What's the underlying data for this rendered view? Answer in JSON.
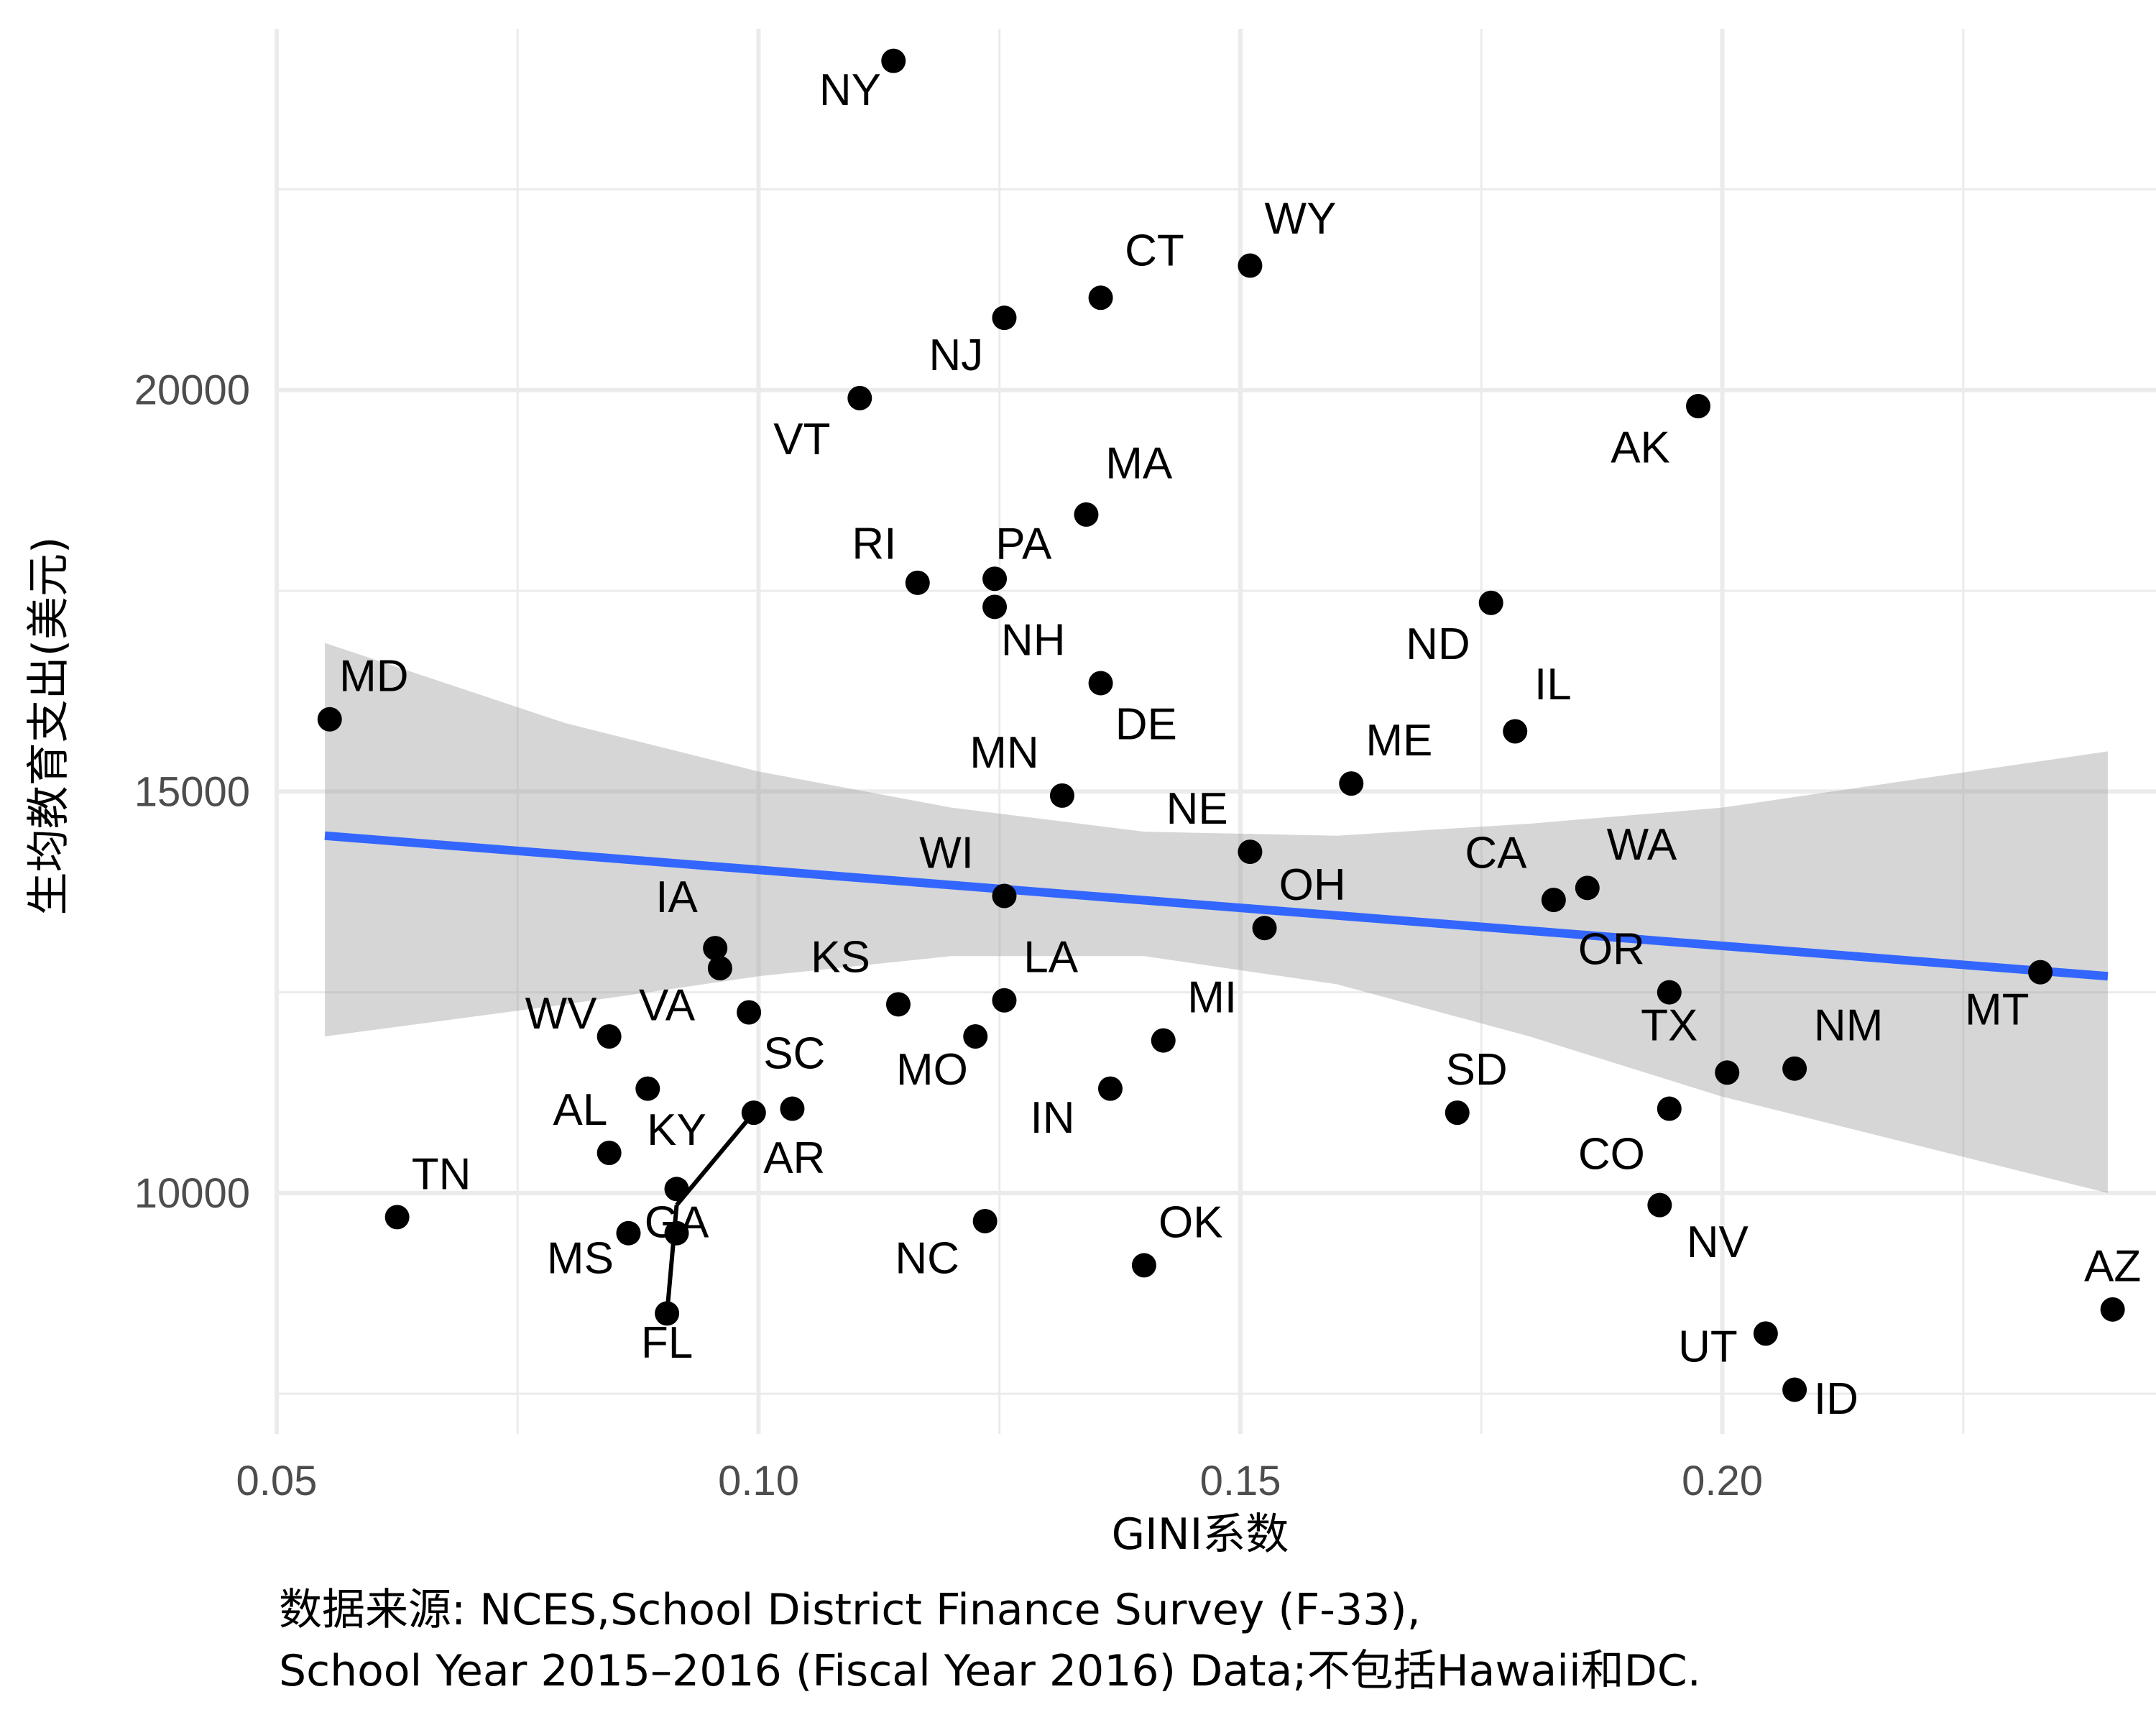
{
  "chart_data": {
    "type": "scatter",
    "xlabel": "GINI系数",
    "ylabel": "生均教育支出(美元)",
    "caption": [
      "数据来源: NCES,School District Finance Survey (F-33),",
      "School Year 2015–2016 (Fiscal Year 2016) Data;不包括Hawaii和DC."
    ],
    "xlim": [
      0.05,
      0.245
    ],
    "ylim": [
      7000,
      24500
    ],
    "x_ticks": [
      0.05,
      0.1,
      0.15,
      0.2
    ],
    "x_tick_labels": [
      "0.05",
      "0.10",
      "0.15",
      "0.20"
    ],
    "y_ticks": [
      10000,
      15000,
      20000
    ],
    "y_tick_labels": [
      "10000",
      "15000",
      "20000"
    ],
    "grid": true,
    "colors": {
      "points": "#000000",
      "trend_line": "#3366ff",
      "confidence_band": "#999999",
      "grid": "#ebebeb"
    },
    "trend": {
      "x": [
        0.055,
        0.24
      ],
      "y": [
        14450,
        12700
      ]
    },
    "band": {
      "x": [
        0.055,
        0.08,
        0.1,
        0.12,
        0.14,
        0.16,
        0.18,
        0.2,
        0.22,
        0.24
      ],
      "lower": [
        11950,
        12350,
        12700,
        12950,
        12950,
        12600,
        11950,
        11200,
        10600,
        10000
      ],
      "upper": [
        16850,
        15850,
        15250,
        14800,
        14500,
        14450,
        14600,
        14800,
        15150,
        15500
      ]
    },
    "points": [
      {
        "label": "NY",
        "x": 0.114,
        "y": 24100,
        "lx": 0.1095,
        "ly": 23550,
        "anchor": "middle"
      },
      {
        "label": "WY",
        "x": 0.151,
        "y": 21550,
        "lx": 0.1525,
        "ly": 21950,
        "anchor": "start"
      },
      {
        "label": "CT",
        "x": 0.1355,
        "y": 21150,
        "lx": 0.138,
        "ly": 21550,
        "anchor": "start"
      },
      {
        "label": "NJ",
        "x": 0.1255,
        "y": 20900,
        "lx": 0.1205,
        "ly": 20250,
        "anchor": "middle"
      },
      {
        "label": "VT",
        "x": 0.1105,
        "y": 19900,
        "lx": 0.1045,
        "ly": 19200,
        "anchor": "middle"
      },
      {
        "label": "AK",
        "x": 0.1975,
        "y": 19800,
        "lx": 0.1915,
        "ly": 19100,
        "anchor": "middle"
      },
      {
        "label": "MA",
        "x": 0.134,
        "y": 18450,
        "lx": 0.136,
        "ly": 18900,
        "anchor": "start"
      },
      {
        "label": "RI",
        "x": 0.1165,
        "y": 17600,
        "lx": 0.112,
        "ly": 17900,
        "anchor": "middle"
      },
      {
        "label": "PA",
        "x": 0.1245,
        "y": 17650,
        "lx": 0.1275,
        "ly": 17900,
        "anchor": "middle"
      },
      {
        "label": "NH",
        "x": 0.1245,
        "y": 17300,
        "lx": 0.1285,
        "ly": 16700,
        "anchor": "middle"
      },
      {
        "label": "ND",
        "x": 0.176,
        "y": 17350,
        "lx": 0.1705,
        "ly": 16650,
        "anchor": "middle"
      },
      {
        "label": "DE",
        "x": 0.1355,
        "y": 16350,
        "lx": 0.137,
        "ly": 15650,
        "anchor": "start"
      },
      {
        "label": "IL",
        "x": 0.1785,
        "y": 15750,
        "lx": 0.1805,
        "ly": 16150,
        "anchor": "start"
      },
      {
        "label": "MD",
        "x": 0.0555,
        "y": 15900,
        "lx": 0.0565,
        "ly": 16250,
        "anchor": "start"
      },
      {
        "label": "ME",
        "x": 0.1615,
        "y": 15100,
        "lx": 0.163,
        "ly": 15450,
        "anchor": "start"
      },
      {
        "label": "MN",
        "x": 0.1315,
        "y": 14950,
        "lx": 0.1255,
        "ly": 15300,
        "anchor": "middle"
      },
      {
        "label": "NE",
        "x": 0.151,
        "y": 14250,
        "lx": 0.1455,
        "ly": 14600,
        "anchor": "middle"
      },
      {
        "label": "WA",
        "x": 0.186,
        "y": 13800,
        "lx": 0.188,
        "ly": 14150,
        "anchor": "start"
      },
      {
        "label": "WI",
        "x": 0.1255,
        "y": 13700,
        "lx": 0.1195,
        "ly": 14050,
        "anchor": "middle"
      },
      {
        "label": "CA",
        "x": 0.1825,
        "y": 13650,
        "lx": 0.1765,
        "ly": 14050,
        "anchor": "middle"
      },
      {
        "label": "OH",
        "x": 0.1525,
        "y": 13300,
        "lx": 0.154,
        "ly": 13650,
        "anchor": "start"
      },
      {
        "label": "IA",
        "x": 0.0955,
        "y": 13050,
        "lx": 0.0915,
        "ly": 13500,
        "anchor": "middle"
      },
      {
        "label": "",
        "x": 0.096,
        "y": 12800,
        "lx": 0,
        "ly": 0,
        "anchor": "middle"
      },
      {
        "label": "MT",
        "x": 0.233,
        "y": 12750,
        "lx": 0.2285,
        "ly": 12100,
        "anchor": "middle"
      },
      {
        "label": "KS",
        "x": 0.1145,
        "y": 12350,
        "lx": 0.1085,
        "ly": 12750,
        "anchor": "middle"
      },
      {
        "label": "LA",
        "x": 0.1255,
        "y": 12400,
        "lx": 0.1275,
        "ly": 12750,
        "anchor": "start"
      },
      {
        "label": "OR",
        "x": 0.1945,
        "y": 12500,
        "lx": 0.1885,
        "ly": 12850,
        "anchor": "middle"
      },
      {
        "label": "VA",
        "x": 0.099,
        "y": 12250,
        "lx": 0.0905,
        "ly": 12150,
        "anchor": "middle"
      },
      {
        "label": "WV",
        "x": 0.0845,
        "y": 11950,
        "lx": 0.0795,
        "ly": 12050,
        "anchor": "middle"
      },
      {
        "label": "MO",
        "x": 0.1225,
        "y": 11950,
        "lx": 0.118,
        "ly": 11350,
        "anchor": "middle"
      },
      {
        "label": "MI",
        "x": 0.142,
        "y": 11900,
        "lx": 0.1445,
        "ly": 12250,
        "anchor": "start"
      },
      {
        "label": "TX",
        "x": 0.2005,
        "y": 11500,
        "lx": 0.1945,
        "ly": 11900,
        "anchor": "middle"
      },
      {
        "label": "NM",
        "x": 0.2075,
        "y": 11550,
        "lx": 0.2095,
        "ly": 11900,
        "anchor": "start"
      },
      {
        "label": "SC",
        "x": 0.1035,
        "y": 11050,
        "lx": 0.1005,
        "ly": 11550,
        "anchor": "start"
      },
      {
        "label": "",
        "x": 0.0885,
        "y": 11300,
        "lx": 0,
        "ly": 0,
        "anchor": "middle"
      },
      {
        "label": "IN",
        "x": 0.1365,
        "y": 11300,
        "lx": 0.1305,
        "ly": 10750,
        "anchor": "middle"
      },
      {
        "label": "SD",
        "x": 0.1725,
        "y": 11000,
        "lx": 0.1745,
        "ly": 11350,
        "anchor": "middle"
      },
      {
        "label": "CO",
        "x": 0.1945,
        "y": 11050,
        "lx": 0.1885,
        "ly": 10300,
        "anchor": "middle"
      },
      {
        "label": "AL",
        "x": 0.0845,
        "y": 10500,
        "lx": 0.0815,
        "ly": 10850,
        "anchor": "middle"
      },
      {
        "label": "KY",
        "x": 0.0915,
        "y": 10050,
        "lx": 0.0915,
        "ly": 10600,
        "anchor": "middle"
      },
      {
        "label": "AR",
        "x": 0.0995,
        "y": 11000,
        "lx": 0.1005,
        "ly": 10250,
        "anchor": "start"
      },
      {
        "label": "TN",
        "x": 0.0625,
        "y": 9700,
        "lx": 0.064,
        "ly": 10050,
        "anchor": "start"
      },
      {
        "label": "NC",
        "x": 0.1235,
        "y": 9650,
        "lx": 0.1175,
        "ly": 9000,
        "anchor": "middle"
      },
      {
        "label": "NV",
        "x": 0.1935,
        "y": 9850,
        "lx": 0.1995,
        "ly": 9200,
        "anchor": "middle"
      },
      {
        "label": "MS",
        "x": 0.0865,
        "y": 9500,
        "lx": 0.0815,
        "ly": 9000,
        "anchor": "middle"
      },
      {
        "label": "GA",
        "x": 0.0915,
        "y": 9500,
        "lx": 0.0915,
        "ly": 9450,
        "anchor": "middle"
      },
      {
        "label": "OK",
        "x": 0.14,
        "y": 9100,
        "lx": 0.1415,
        "ly": 9450,
        "anchor": "start"
      },
      {
        "label": "FL",
        "x": 0.0905,
        "y": 8500,
        "lx": 0.0905,
        "ly": 7950,
        "anchor": "middle"
      },
      {
        "label": "AZ",
        "x": 0.2405,
        "y": 8550,
        "lx": 0.2405,
        "ly": 8900,
        "anchor": "middle"
      },
      {
        "label": "UT",
        "x": 0.2045,
        "y": 8250,
        "lx": 0.1985,
        "ly": 7900,
        "anchor": "middle"
      },
      {
        "label": "ID",
        "x": 0.2075,
        "y": 7550,
        "lx": 0.2095,
        "ly": 7250,
        "anchor": "start"
      }
    ],
    "connectors": [
      {
        "from": [
          0.0915,
          9850
        ],
        "to": [
          0.0995,
          11000
        ]
      },
      {
        "from": [
          0.0915,
          9850
        ],
        "to": [
          0.0905,
          8500
        ]
      }
    ]
  }
}
